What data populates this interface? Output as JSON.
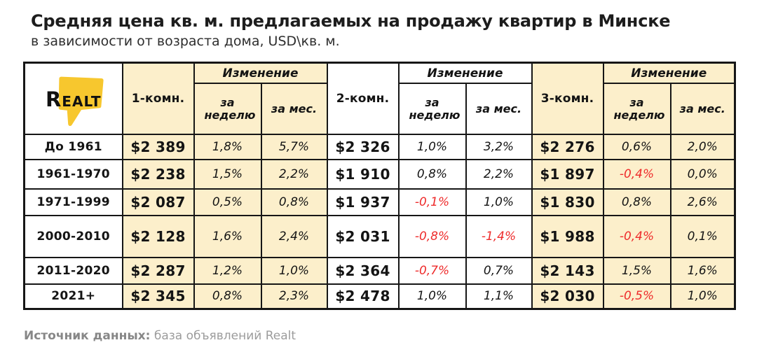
{
  "title": "Средняя цена кв. м. предлагаемых на продажу квартир в Минске",
  "subtitle": "в зависимости от возраста дома, USD\\кв. м.",
  "logo": {
    "brand": "Realt"
  },
  "table": {
    "change_label": "Изменение",
    "week_label": "за неделю",
    "month_label": "за мес.",
    "groups": [
      {
        "label": "1-комн."
      },
      {
        "label": "2-комн."
      },
      {
        "label": "3-комн."
      }
    ],
    "rows": [
      {
        "label": "До 1961",
        "cells": [
          {
            "price": "$2 389",
            "week": "1,8%",
            "month": "5,7%"
          },
          {
            "price": "$2 326",
            "week": "1,0%",
            "month": "3,2%"
          },
          {
            "price": "$2 276",
            "week": "0,6%",
            "month": "2,0%"
          }
        ]
      },
      {
        "label": "1961-1970",
        "cells": [
          {
            "price": "$2 238",
            "week": "1,5%",
            "month": "2,2%"
          },
          {
            "price": "$1 910",
            "week": "0,8%",
            "month": "2,2%"
          },
          {
            "price": "$1 897",
            "week": "-0,4%",
            "month": "0,0%"
          }
        ]
      },
      {
        "label": "1971-1999",
        "cells": [
          {
            "price": "$2 087",
            "week": "0,5%",
            "month": "0,8%"
          },
          {
            "price": "$1 937",
            "week": "-0,1%",
            "month": "1,0%"
          },
          {
            "price": "$1 830",
            "week": "0,8%",
            "month": "2,6%"
          }
        ]
      },
      {
        "label": "2000-2010",
        "cells": [
          {
            "price": "$2 128",
            "week": "1,6%",
            "month": "2,4%"
          },
          {
            "price": "$2 031",
            "week": "-0,8%",
            "month": "-1,4%"
          },
          {
            "price": "$1 988",
            "week": "-0,4%",
            "month": "0,1%"
          }
        ]
      },
      {
        "label": "2011-2020",
        "cells": [
          {
            "price": "$2 287",
            "week": "1,2%",
            "month": "1,0%"
          },
          {
            "price": "$2 364",
            "week": "-0,7%",
            "month": "0,7%"
          },
          {
            "price": "$2 143",
            "week": "1,5%",
            "month": "1,6%"
          }
        ]
      },
      {
        "label": "2021+",
        "cells": [
          {
            "price": "$2 345",
            "week": "0,8%",
            "month": "2,3%"
          },
          {
            "price": "$2 478",
            "week": "1,0%",
            "month": "1,1%"
          },
          {
            "price": "$2 030",
            "week": "-0,5%",
            "month": "1,0%"
          }
        ]
      }
    ]
  },
  "footer": {
    "label": "Источник данных:",
    "text": "база объявлений Realt"
  },
  "colors": {
    "cream": "#FCEFCB",
    "yellow": "#F7C72E",
    "red": "#EE2B2B",
    "border": "#161616"
  },
  "chart_data": {
    "type": "table",
    "title": "Средняя цена кв. м. предлагаемых на продажу квартир в Минске",
    "subtitle": "в зависимости от возраста дома, USD\\кв. м.",
    "columns": [
      "Возраст дома",
      "1-комн. цена",
      "1-комн. изменение за неделю",
      "1-комн. изменение за мес.",
      "2-комн. цена",
      "2-комн. изменение за неделю",
      "2-комн. изменение за мес.",
      "3-комн. цена",
      "3-комн. изменение за неделю",
      "3-комн. изменение за мес."
    ],
    "rows": [
      [
        "До 1961",
        "$2 389",
        "1,8%",
        "5,7%",
        "$2 326",
        "1,0%",
        "3,2%",
        "$2 276",
        "0,6%",
        "2,0%"
      ],
      [
        "1961-1970",
        "$2 238",
        "1,5%",
        "2,2%",
        "$1 910",
        "0,8%",
        "2,2%",
        "$1 897",
        "-0,4%",
        "0,0%"
      ],
      [
        "1971-1999",
        "$2 087",
        "0,5%",
        "0,8%",
        "$1 937",
        "-0,1%",
        "1,0%",
        "$1 830",
        "0,8%",
        "2,6%"
      ],
      [
        "2000-2010",
        "$2 128",
        "1,6%",
        "2,4%",
        "$2 031",
        "-0,8%",
        "-1,4%",
        "$1 988",
        "-0,4%",
        "0,1%"
      ],
      [
        "2011-2020",
        "$2 287",
        "1,2%",
        "1,0%",
        "$2 364",
        "-0,7%",
        "0,7%",
        "$2 143",
        "1,5%",
        "1,6%"
      ],
      [
        "2021+",
        "$2 345",
        "0,8%",
        "2,3%",
        "$2 478",
        "1,0%",
        "1,1%",
        "$2 030",
        "-0,5%",
        "1,0%"
      ]
    ],
    "source": "Источник данных: база объявлений Realt"
  }
}
